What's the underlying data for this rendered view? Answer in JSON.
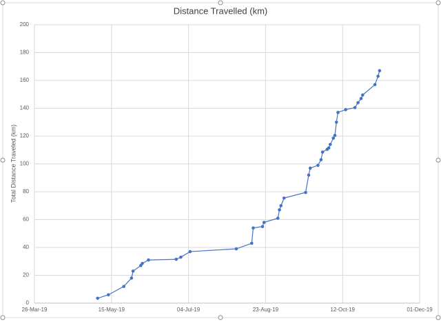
{
  "chart_data": {
    "type": "line",
    "title": "Distance Travelled (km)",
    "y_label": "Total Distance Traveled (km)",
    "x": [
      "2019-05-06",
      "2019-05-13",
      "2019-05-23",
      "2019-05-28",
      "2019-05-29",
      "2019-06-03",
      "2019-06-04",
      "2019-06-08",
      "2019-06-26",
      "2019-06-29",
      "2019-07-05",
      "2019-08-04",
      "2019-08-14",
      "2019-08-15",
      "2019-08-21",
      "2019-08-22",
      "2019-08-31",
      "2019-09-01",
      "2019-09-02",
      "2019-09-04",
      "2019-09-18",
      "2019-09-20",
      "2019-09-21",
      "2019-09-26",
      "2019-09-28",
      "2019-09-29",
      "2019-10-02",
      "2019-10-03",
      "2019-10-04",
      "2019-10-06",
      "2019-10-07",
      "2019-10-08",
      "2019-10-09",
      "2019-10-14",
      "2019-10-20",
      "2019-10-22",
      "2019-10-24",
      "2019-10-25",
      "2019-11-02",
      "2019-11-04",
      "2019-11-05"
    ],
    "series": [
      {
        "name": "Total Distance Traveled (km)",
        "color": "#4472c4",
        "values": [
          3.5,
          6,
          12,
          18,
          23,
          27,
          28.5,
          31,
          31.5,
          33,
          37,
          39,
          43,
          54,
          55,
          58,
          61,
          67,
          70,
          75.5,
          79.5,
          92,
          97,
          99,
          103,
          108.5,
          110.5,
          111.5,
          114,
          118.5,
          120.5,
          130,
          137,
          139,
          140.5,
          144,
          147,
          149.5,
          157,
          163,
          167
        ]
      }
    ],
    "xlim": [
      "2019-03-26",
      "2019-12-01"
    ],
    "xticks": [
      {
        "value": "2019-03-26",
        "label": "26-Mar-19"
      },
      {
        "value": "2019-05-15",
        "label": "15-May-19"
      },
      {
        "value": "2019-07-04",
        "label": "04-Jul-19"
      },
      {
        "value": "2019-08-23",
        "label": "23-Aug-19"
      },
      {
        "value": "2019-10-12",
        "label": "12-Oct-19"
      },
      {
        "value": "2019-12-01",
        "label": "01-Dec-19"
      }
    ],
    "ylim": [
      0,
      200
    ],
    "yticks": [
      0,
      20,
      40,
      60,
      80,
      100,
      120,
      140,
      160,
      180,
      200
    ],
    "grid": true
  }
}
